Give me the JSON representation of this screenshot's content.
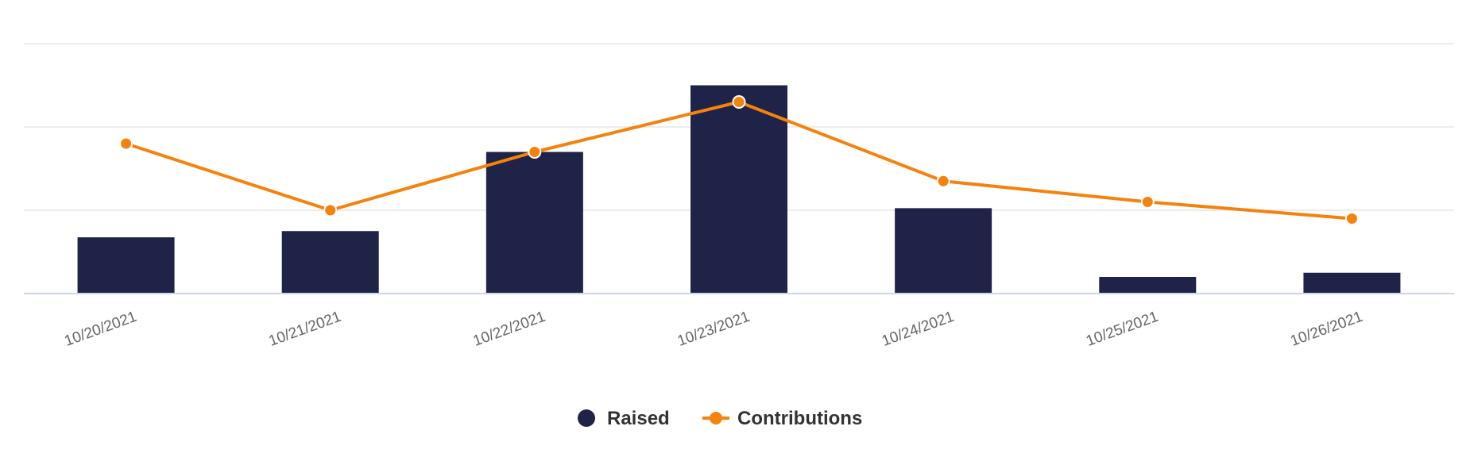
{
  "chart_data": {
    "type": "bar",
    "categories": [
      "10/20/2021",
      "10/21/2021",
      "10/22/2021",
      "10/23/2021",
      "10/24/2021",
      "10/25/2021",
      "10/26/2021"
    ],
    "series": [
      {
        "name": "Raised",
        "type": "bar",
        "color": "#1e2347",
        "values": [
          27,
          30,
          68,
          100,
          41,
          8,
          10
        ]
      },
      {
        "name": "Contributions",
        "type": "line",
        "color": "#f5820d",
        "values": [
          18,
          10,
          17,
          23,
          13.5,
          11,
          9
        ]
      }
    ],
    "title": "",
    "xlabel": "",
    "ylabel": "",
    "ylim_raised": [
      0,
      120
    ],
    "ylim_contributions": [
      0,
      30
    ],
    "grid": true,
    "legend": "bottom-center",
    "colors": {
      "grid": "#e6e6e6",
      "axis": "#ccd6eb",
      "tick_text": "#666666",
      "legend_text": "#333333"
    }
  }
}
